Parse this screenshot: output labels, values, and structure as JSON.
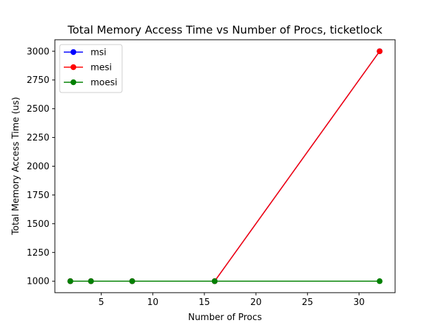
{
  "chart_data": {
    "type": "line",
    "title": "Total Memory Access Time vs Number of Procs, ticketlock",
    "xlabel": "Number of Procs",
    "ylabel": "Total Memory Access Time (us)",
    "x": [
      2,
      4,
      8,
      16,
      32
    ],
    "xlim": [
      0.5,
      33.5
    ],
    "ylim": [
      900,
      3100
    ],
    "xticks": [
      5,
      10,
      15,
      20,
      25,
      30
    ],
    "yticks": [
      1000,
      1250,
      1500,
      1750,
      2000,
      2250,
      2500,
      2750,
      3000
    ],
    "grid": false,
    "legend_position": "top-left",
    "series": [
      {
        "name": "msi",
        "color": "#0000ff",
        "values": [
          1000,
          1000,
          1000,
          1000,
          3000
        ]
      },
      {
        "name": "mesi",
        "color": "#ff0000",
        "values": [
          1000,
          1000,
          1000,
          1000,
          3000
        ]
      },
      {
        "name": "moesi",
        "color": "#008000",
        "values": [
          1000,
          1000,
          1000,
          1000,
          1000
        ]
      }
    ]
  }
}
